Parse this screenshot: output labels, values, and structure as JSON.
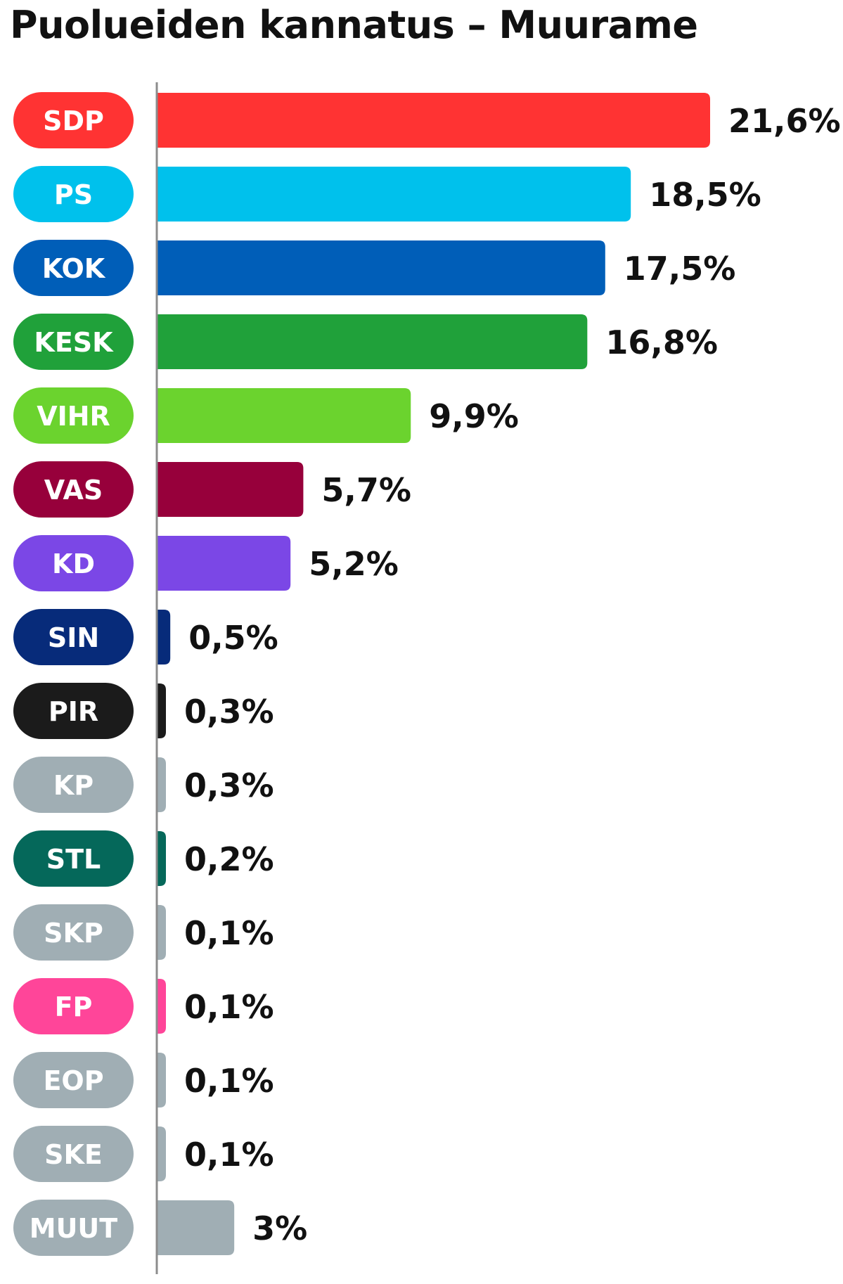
{
  "title": "Puolueiden kannatus – Muurame",
  "chart_data": {
    "type": "bar",
    "orientation": "horizontal",
    "title": "Puolueiden kannatus – Muurame",
    "xlabel": "",
    "ylabel": "",
    "grid": false,
    "legend": "none",
    "xlim": [
      0,
      21.6
    ],
    "categories": [
      "SDP",
      "PS",
      "KOK",
      "KESK",
      "VIHR",
      "VAS",
      "KD",
      "SIN",
      "PIR",
      "KP",
      "STL",
      "SKP",
      "FP",
      "EOP",
      "SKE",
      "MUUT"
    ],
    "values": [
      21.6,
      18.5,
      17.5,
      16.8,
      9.9,
      5.7,
      5.2,
      0.5,
      0.3,
      0.3,
      0.2,
      0.1,
      0.1,
      0.1,
      0.1,
      3
    ],
    "value_labels": [
      "21,6%",
      "18,5%",
      "17,5%",
      "16,8%",
      "9,9%",
      "5,7%",
      "5,2%",
      "0,5%",
      "0,3%",
      "0,3%",
      "0,2%",
      "0,1%",
      "0,1%",
      "0,1%",
      "0,1%",
      "3%"
    ],
    "colors": [
      "#ff3333",
      "#00c1ec",
      "#005eb8",
      "#20a13a",
      "#6bd32e",
      "#97003b",
      "#7b47e6",
      "#072b7a",
      "#1b1b1b",
      "#a0aeb4",
      "#05685a",
      "#a0aeb4",
      "#ff4599",
      "#a0aeb4",
      "#a0aeb4",
      "#a0aeb4"
    ],
    "axis_color": "#8c8c8c"
  }
}
